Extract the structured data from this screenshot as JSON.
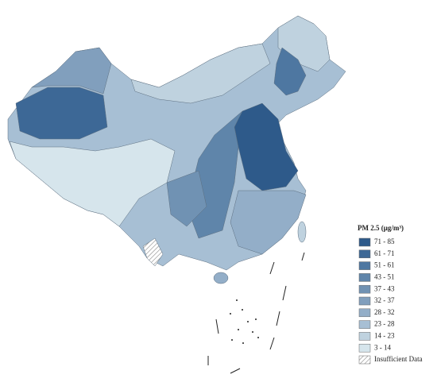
{
  "legend": {
    "title": "PM 2.5 (μg/m³)",
    "items": [
      {
        "label": "71 - 85",
        "color": "#2e5a8a"
      },
      {
        "label": "61 - 71",
        "color": "#3d6896"
      },
      {
        "label": "51 - 61",
        "color": "#4e77a1"
      },
      {
        "label": "43 - 51",
        "color": "#5f85aa"
      },
      {
        "label": "37 - 43",
        "color": "#7092b3"
      },
      {
        "label": "32 - 37",
        "color": "#819fbd"
      },
      {
        "label": "28 - 32",
        "color": "#93aec8"
      },
      {
        "label": "23 - 28",
        "color": "#a7bfd4"
      },
      {
        "label": "14 - 23",
        "color": "#bfd2df"
      },
      {
        "label": "3 - 14",
        "color": "#d6e5ec"
      },
      {
        "label": "Insufficient Data",
        "fill": "hatch"
      }
    ]
  }
}
